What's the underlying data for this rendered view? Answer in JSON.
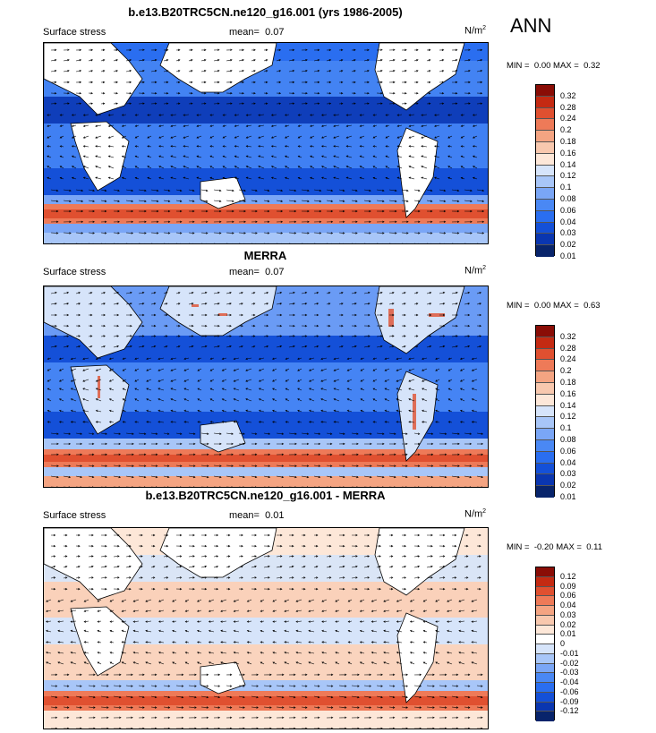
{
  "season": "ANN",
  "colors": {
    "abs_scale": [
      "#08246b",
      "#0a36b0",
      "#1450d8",
      "#2a6ef0",
      "#4a88f4",
      "#7aa6f6",
      "#a8c6f8",
      "#d6e4fa",
      "#fde7d8",
      "#f8c8ae",
      "#f4a482",
      "#ee7a58",
      "#e05030",
      "#c42a12",
      "#8a0d06"
    ],
    "diff_scale": [
      "#08246b",
      "#0a36b0",
      "#1450d8",
      "#2a6ef0",
      "#4a88f4",
      "#7aa6f6",
      "#a8c6f8",
      "#d6e4fa",
      "#ffffff",
      "#fde7d8",
      "#f8c8ae",
      "#f4a482",
      "#ee7a58",
      "#e05030",
      "#c42a12",
      "#8a0d06"
    ],
    "land": "#ffffff"
  },
  "panels": [
    {
      "title": "b.e13.B20TRC5CN.ne120_g16.001 (yrs 1986-2005)",
      "label": "Surface stress",
      "mean_label": "mean=",
      "mean_value": "0.07",
      "units": "N/m",
      "units_sup": "2",
      "min_label": "MIN =",
      "min_value": "0.00",
      "max_label": "MAX =",
      "max_value": "0.32",
      "ticks": [
        "0.32",
        "0.28",
        "0.24",
        "0.2",
        "0.18",
        "0.16",
        "0.14",
        "0.12",
        "0.1",
        "0.08",
        "0.06",
        "0.04",
        "0.03",
        "0.02",
        "0.01"
      ]
    },
    {
      "title": "MERRA",
      "label": "Surface stress",
      "mean_label": "mean=",
      "mean_value": "0.07",
      "units": "N/m",
      "units_sup": "2",
      "min_label": "MIN =",
      "min_value": "0.00",
      "max_label": "MAX =",
      "max_value": "0.63",
      "ticks": [
        "0.32",
        "0.28",
        "0.24",
        "0.2",
        "0.18",
        "0.16",
        "0.14",
        "0.12",
        "0.1",
        "0.08",
        "0.06",
        "0.04",
        "0.03",
        "0.02",
        "0.01"
      ]
    },
    {
      "title": "b.e13.B20TRC5CN.ne120_g16.001 - MERRA",
      "label": "Surface stress",
      "mean_label": "mean=",
      "mean_value": "0.01",
      "units": "N/m",
      "units_sup": "2",
      "min_label": "MIN =",
      "min_value": "-0.20",
      "max_label": "MAX =",
      "max_value": "0.11",
      "ticks": [
        "0.12",
        "0.09",
        "0.06",
        "0.04",
        "0.03",
        "0.02",
        "0.01",
        "0",
        "-0.01",
        "-0.02",
        "-0.03",
        "-0.04",
        "-0.06",
        "-0.09",
        "-0.12"
      ]
    }
  ]
}
